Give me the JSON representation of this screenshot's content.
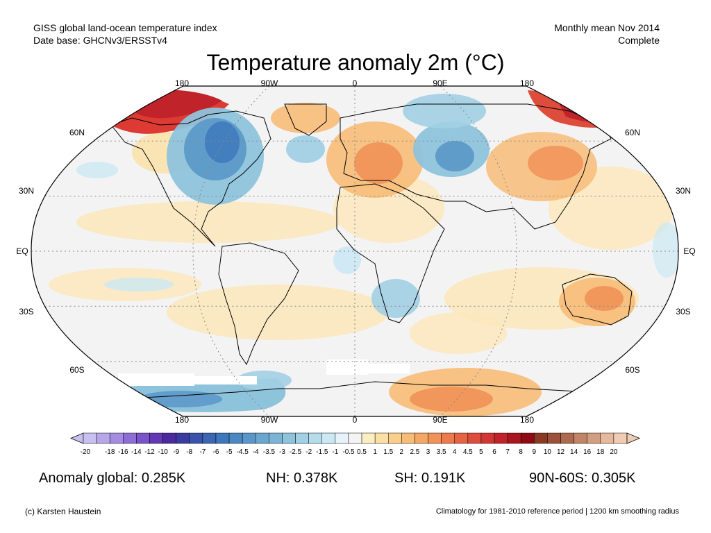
{
  "header": {
    "dataset_line": "GISS global land-ocean temperature index",
    "database_line": "Date base: GHCNv3/ERSSTv4",
    "period_line": "Monthly mean Nov 2014",
    "status_line": "Complete"
  },
  "title": "Temperature anomaly 2m (°C)",
  "map": {
    "projection": "Robinson",
    "lon_labels_top": [
      "180",
      "90W",
      "0",
      "90E",
      "180"
    ],
    "lon_labels_bottom": [
      "180",
      "90W",
      "0",
      "90E",
      "180"
    ],
    "lat_labels_left": [
      "60N",
      "30N",
      "EQ",
      "30S",
      "60S"
    ],
    "lat_labels_right": [
      "60N",
      "30N",
      "EQ",
      "30S",
      "60S"
    ],
    "no_data_color": "#ffffff"
  },
  "colorbar": {
    "labels": [
      "-20",
      "-18",
      "-16",
      "-14",
      "-12",
      "-10",
      "-9",
      "-8",
      "-7",
      "-6",
      "-5",
      "-4.5",
      "-4",
      "-3.5",
      "-3",
      "-2.5",
      "-2",
      "-1.5",
      "-1",
      "-0.5",
      "0.5",
      "1",
      "1.5",
      "2",
      "2.5",
      "3",
      "3.5",
      "4",
      "4.5",
      "5",
      "6",
      "7",
      "8",
      "9",
      "10",
      "12",
      "14",
      "16",
      "18",
      "20"
    ],
    "colors": [
      "#c8c0f0",
      "#b6a6ea",
      "#a48ce2",
      "#8e6ed6",
      "#7a52ca",
      "#6238b4",
      "#4b2a9e",
      "#3b3aa0",
      "#3a52aa",
      "#3a66b2",
      "#3c78bb",
      "#4a88c2",
      "#5a97c8",
      "#6aa6ce",
      "#7cb4d5",
      "#8ec3dc",
      "#a2d0e4",
      "#b6dcec",
      "#cce8f4",
      "#e6f3fa",
      "#f4f4f4",
      "#fbeec2",
      "#fbe0a4",
      "#f9cf8c",
      "#f7bc78",
      "#f4a866",
      "#f19258",
      "#ec7a4c",
      "#e66444",
      "#de4c3c",
      "#d23634",
      "#c0242a",
      "#a81620",
      "#8e0a14",
      "#8a3a22",
      "#9a5238",
      "#ac6a4e",
      "#c08466",
      "#d29e80",
      "#e6b89c",
      "#f0ccb4"
    ]
  },
  "stats": {
    "global": "Anomaly global: 0.285K",
    "nh": "NH: 0.378K",
    "sh": "SH: 0.191K",
    "arctic": "90N-60S: 0.305K"
  },
  "footer": {
    "credit": "(c) Karsten Haustein",
    "note": "Climatology for 1981-2010 reference period | 1200 km smoothing radius"
  }
}
